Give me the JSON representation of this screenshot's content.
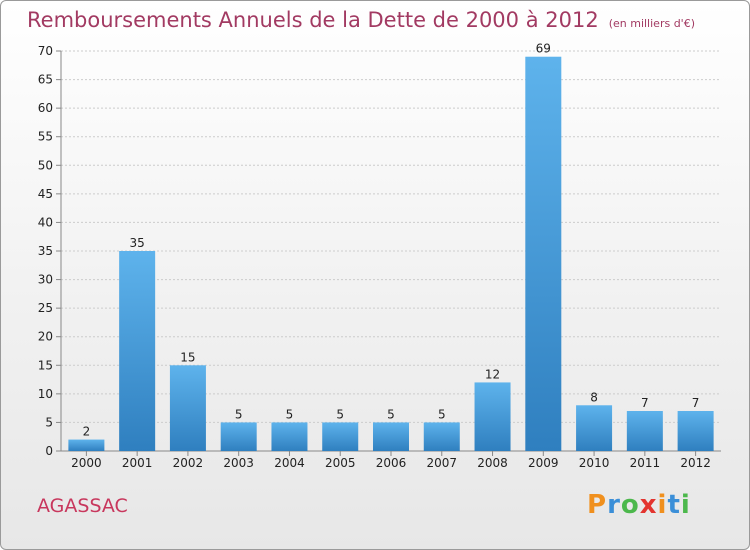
{
  "header": {
    "title": "Remboursements Annuels de la Dette de 2000 à 2012",
    "subtitle": "(en milliers d'€)"
  },
  "commune": "AGASSAC",
  "brand": {
    "text": "Proxiti",
    "letter_colors": [
      "#f0901e",
      "#3b8fd8",
      "#4cb84c",
      "#e3342f",
      "#f0901e",
      "#3b8fd8",
      "#4cb84c"
    ]
  },
  "colors": {
    "bar_top": "#5eb3ec",
    "bar_bottom": "#2f7fbf",
    "grid": "#cccccc",
    "axis_text": "#222222",
    "title": "#a23a62"
  },
  "chart_data": {
    "type": "bar",
    "title": "Remboursements Annuels de la Dette de 2000 à 2012",
    "subtitle": "(en milliers d'€)",
    "categories": [
      "2000",
      "2001",
      "2002",
      "2003",
      "2004",
      "2005",
      "2006",
      "2007",
      "2008",
      "2009",
      "2010",
      "2011",
      "2012"
    ],
    "values": [
      2,
      35,
      15,
      5,
      5,
      5,
      5,
      5,
      12,
      69,
      8,
      7,
      7
    ],
    "ylim": [
      0,
      70
    ],
    "yticks": [
      0,
      5,
      10,
      15,
      20,
      25,
      30,
      35,
      40,
      45,
      50,
      55,
      60,
      65,
      70
    ],
    "grid": true,
    "data_labels": true,
    "xlabel": "",
    "ylabel": ""
  }
}
